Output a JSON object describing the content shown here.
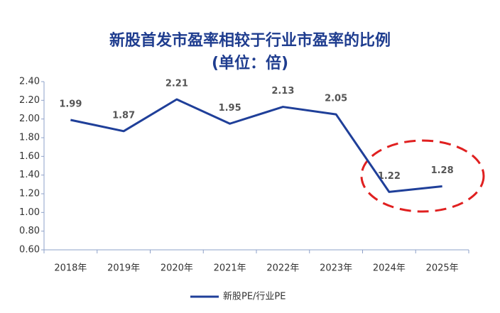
{
  "chart_data": {
    "type": "line",
    "title": "新股首发市盈率相较于行业市盈率的比例",
    "subtitle": "(单位：倍)",
    "categories": [
      "2018年",
      "2019年",
      "2020年",
      "2021年",
      "2022年",
      "2023年",
      "2024年",
      "2025年"
    ],
    "series": [
      {
        "name": "新股PE/行业PE",
        "color": "#1f3f99",
        "values": [
          1.99,
          1.87,
          2.21,
          1.95,
          2.13,
          2.05,
          1.22,
          1.28
        ]
      }
    ],
    "ylim": [
      0.6,
      2.4
    ],
    "yticks": [
      {
        "value": 0.6,
        "label": "0.60"
      },
      {
        "value": 0.8,
        "label": "0.80"
      },
      {
        "value": 1.0,
        "label": "1.00"
      },
      {
        "value": 1.2,
        "label": "1.20"
      },
      {
        "value": 1.4,
        "label": "1.40"
      },
      {
        "value": 1.6,
        "label": "1.60"
      },
      {
        "value": 1.8,
        "label": "1.80"
      },
      {
        "value": 2.0,
        "label": "2.00"
      },
      {
        "value": 2.2,
        "label": "2.20"
      },
      {
        "value": 2.4,
        "label": "2.40"
      }
    ],
    "grid": false,
    "legend": "bottom"
  }
}
